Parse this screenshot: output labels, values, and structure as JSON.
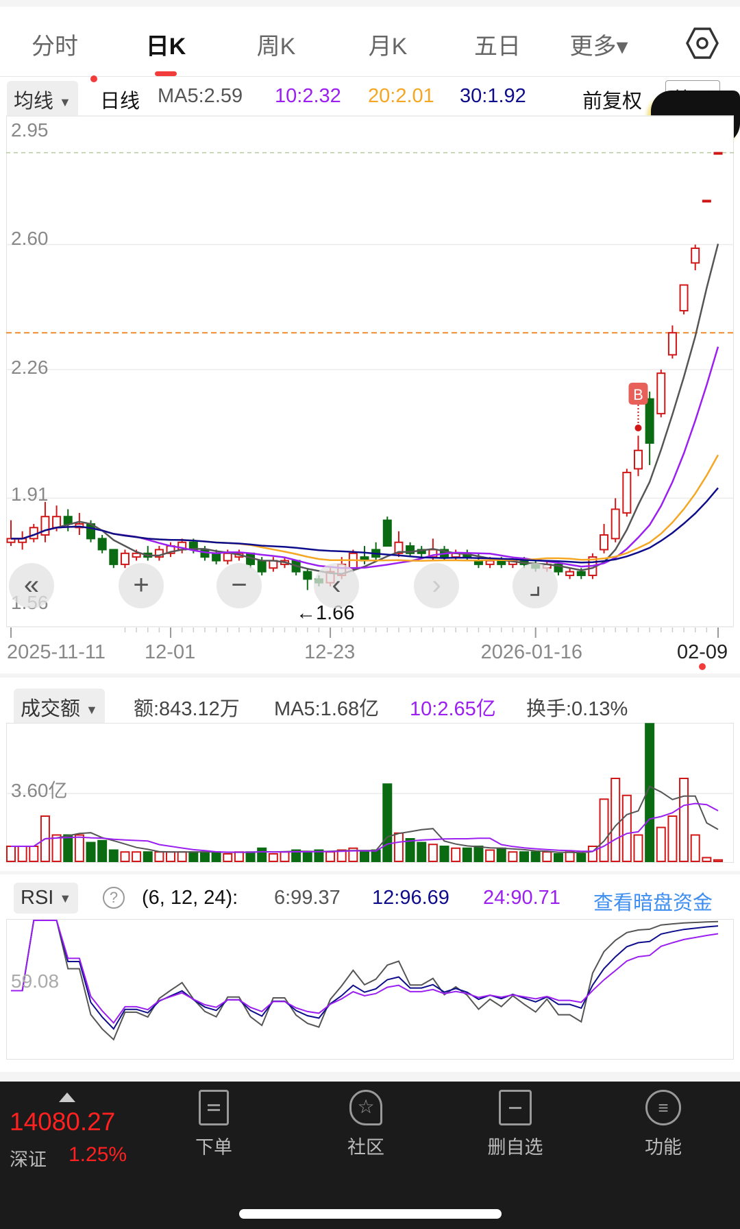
{
  "tabs": [
    {
      "label": "分时",
      "active": false
    },
    {
      "label": "日K",
      "active": true
    },
    {
      "label": "周K",
      "active": false
    },
    {
      "label": "月K",
      "active": false
    },
    {
      "label": "五日",
      "active": false
    },
    {
      "label": "更多▾",
      "active": false
    }
  ],
  "settings_icon": "hexagon-gear-icon",
  "ma_header": {
    "selector": "均线",
    "period": "日线",
    "ma5": "MA5:2.59",
    "ma10": "10:2.32",
    "ma20": "20:2.01",
    "ma30": "30:1.92",
    "adjust": "前复权",
    "chips_button": "筹码"
  },
  "colors": {
    "up": "#d01616",
    "down": "#0b6b12",
    "ma5": "#555555",
    "ma10": "#9b1ff0",
    "ma20": "#f5a623",
    "ma30": "#0d0d8c",
    "link": "#3d8ef0"
  },
  "price_axis": {
    "labels": [
      "2.95",
      "2.60",
      "2.26",
      "1.91",
      "1.56"
    ],
    "min": 1.56,
    "max": 2.95
  },
  "low_marker": "←1.66",
  "buy_marker": "B",
  "date_labels": [
    {
      "label": "2025-11-11",
      "index": 0
    },
    {
      "label": "12-01",
      "index": 14
    },
    {
      "label": "12-23",
      "index": 28
    },
    {
      "label": "2026-01-16",
      "index": 46
    },
    {
      "label": "02-09",
      "index": 62
    }
  ],
  "nav_buttons": [
    {
      "name": "scroll-start",
      "glyph": "«"
    },
    {
      "name": "zoom-in",
      "glyph": "+"
    },
    {
      "name": "zoom-out",
      "glyph": "−"
    },
    {
      "name": "scroll-left",
      "glyph": "‹"
    },
    {
      "name": "scroll-right",
      "glyph": "›"
    },
    {
      "name": "fullscreen",
      "glyph": "⌟"
    }
  ],
  "chart_data": {
    "type": "candlestick",
    "ohlc": [
      [
        1.79,
        1.85,
        1.78,
        1.8
      ],
      [
        1.79,
        1.82,
        1.77,
        1.8
      ],
      [
        1.8,
        1.84,
        1.79,
        1.83
      ],
      [
        1.81,
        1.9,
        1.79,
        1.86
      ],
      [
        1.83,
        1.89,
        1.82,
        1.86
      ],
      [
        1.86,
        1.88,
        1.82,
        1.84
      ],
      [
        1.83,
        1.87,
        1.81,
        1.84
      ],
      [
        1.84,
        1.85,
        1.79,
        1.8
      ],
      [
        1.8,
        1.81,
        1.76,
        1.77
      ],
      [
        1.77,
        1.77,
        1.72,
        1.73
      ],
      [
        1.73,
        1.77,
        1.72,
        1.76
      ],
      [
        1.75,
        1.77,
        1.74,
        1.76
      ],
      [
        1.76,
        1.78,
        1.74,
        1.75
      ],
      [
        1.75,
        1.78,
        1.74,
        1.77
      ],
      [
        1.76,
        1.79,
        1.75,
        1.78
      ],
      [
        1.77,
        1.8,
        1.76,
        1.79
      ],
      [
        1.79,
        1.8,
        1.76,
        1.77
      ],
      [
        1.77,
        1.78,
        1.74,
        1.75
      ],
      [
        1.76,
        1.77,
        1.73,
        1.74
      ],
      [
        1.74,
        1.77,
        1.73,
        1.76
      ],
      [
        1.75,
        1.77,
        1.74,
        1.76
      ],
      [
        1.76,
        1.76,
        1.72,
        1.73
      ],
      [
        1.74,
        1.75,
        1.7,
        1.71
      ],
      [
        1.72,
        1.75,
        1.71,
        1.74
      ],
      [
        1.73,
        1.75,
        1.72,
        1.74
      ],
      [
        1.74,
        1.74,
        1.7,
        1.71
      ],
      [
        1.71,
        1.72,
        1.66,
        1.69
      ],
      [
        1.69,
        1.7,
        1.67,
        1.68
      ],
      [
        1.68,
        1.72,
        1.67,
        1.71
      ],
      [
        1.7,
        1.75,
        1.69,
        1.73
      ],
      [
        1.72,
        1.77,
        1.71,
        1.76
      ],
      [
        1.75,
        1.78,
        1.73,
        1.74
      ],
      [
        1.77,
        1.79,
        1.74,
        1.75
      ],
      [
        1.85,
        1.86,
        1.78,
        1.78
      ],
      [
        1.76,
        1.82,
        1.75,
        1.79
      ],
      [
        1.78,
        1.79,
        1.75,
        1.76
      ],
      [
        1.77,
        1.78,
        1.75,
        1.76
      ],
      [
        1.75,
        1.8,
        1.74,
        1.77
      ],
      [
        1.77,
        1.78,
        1.74,
        1.75
      ],
      [
        1.75,
        1.77,
        1.74,
        1.76
      ],
      [
        1.76,
        1.77,
        1.74,
        1.75
      ],
      [
        1.74,
        1.76,
        1.72,
        1.73
      ],
      [
        1.73,
        1.75,
        1.72,
        1.74
      ],
      [
        1.74,
        1.75,
        1.72,
        1.73
      ],
      [
        1.73,
        1.75,
        1.72,
        1.74
      ],
      [
        1.74,
        1.75,
        1.72,
        1.73
      ],
      [
        1.73,
        1.74,
        1.71,
        1.72
      ],
      [
        1.72,
        1.74,
        1.71,
        1.73
      ],
      [
        1.73,
        1.74,
        1.7,
        1.71
      ],
      [
        1.7,
        1.72,
        1.69,
        1.71
      ],
      [
        1.71,
        1.72,
        1.69,
        1.7
      ],
      [
        1.7,
        1.76,
        1.69,
        1.75
      ],
      [
        1.77,
        1.84,
        1.76,
        1.81
      ],
      [
        1.8,
        1.91,
        1.79,
        1.88
      ],
      [
        1.87,
        1.99,
        1.86,
        1.98
      ],
      [
        1.99,
        2.08,
        1.97,
        2.04
      ],
      [
        2.18,
        2.2,
        2.0,
        2.06
      ],
      [
        2.14,
        2.26,
        2.13,
        2.25
      ],
      [
        2.3,
        2.38,
        2.29,
        2.36
      ],
      [
        2.42,
        2.49,
        2.41,
        2.49
      ],
      [
        2.55,
        2.6,
        2.53,
        2.59
      ],
      [
        2.72,
        2.72,
        2.72,
        2.72
      ],
      [
        2.85,
        2.85,
        2.85,
        2.85
      ]
    ],
    "volume_yi": [
      0.8,
      0.8,
      0.8,
      2.4,
      1.4,
      1.4,
      1.4,
      1.0,
      1.1,
      0.6,
      0.5,
      0.5,
      0.5,
      0.5,
      0.5,
      0.5,
      0.5,
      0.5,
      0.5,
      0.4,
      0.5,
      0.5,
      0.7,
      0.4,
      0.5,
      0.6,
      0.5,
      0.6,
      0.5,
      0.6,
      0.7,
      0.5,
      0.6,
      4.1,
      1.5,
      1.2,
      1.0,
      0.9,
      0.8,
      0.7,
      0.7,
      0.8,
      0.6,
      0.7,
      0.5,
      0.5,
      0.5,
      0.5,
      0.4,
      0.5,
      0.4,
      0.8,
      3.3,
      4.4,
      3.5,
      1.4,
      7.3,
      1.8,
      2.4,
      4.4,
      1.4,
      0.2,
      0.08
    ],
    "buy_signal_index": 55,
    "ma_periods": [
      5,
      10,
      20,
      30
    ]
  },
  "volume_header": {
    "selector": "成交额",
    "amount": "额:843.12万",
    "ma5": "MA5:1.68亿",
    "ma10": "10:2.65亿",
    "turnover": "换手:0.13%",
    "axis_label": "3.60亿",
    "axis_value": 3.6
  },
  "rsi_header": {
    "selector": "RSI",
    "help_icon": "question-circle-icon",
    "params": "(6, 12, 24):",
    "rsi6": "6:99.37",
    "rsi12": "12:96.69",
    "rsi24": "24:90.71",
    "link": "查看暗盘资金",
    "axis_label": "59.08"
  },
  "bottom_bar": {
    "index_value": "14080.27",
    "index_name": "深证",
    "index_change": "1.25%",
    "items": [
      {
        "label": "下单",
        "icon": "document-icon"
      },
      {
        "label": "社区",
        "icon": "star-badge-icon"
      },
      {
        "label": "删自选",
        "icon": "minus-square-icon"
      },
      {
        "label": "功能",
        "icon": "menu-circle-icon"
      }
    ]
  }
}
